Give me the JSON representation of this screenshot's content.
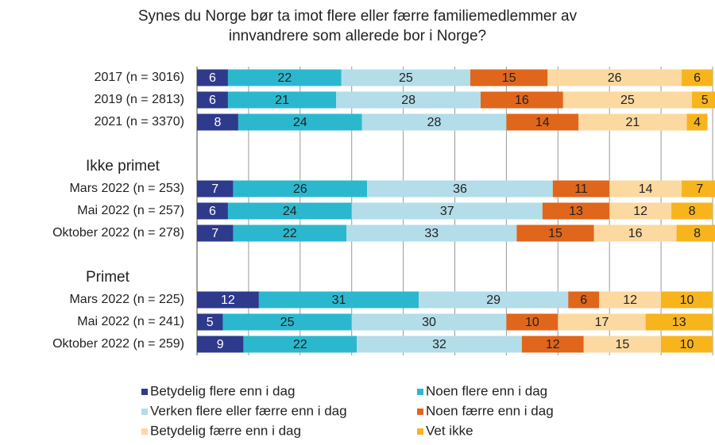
{
  "chart_data": {
    "type": "stacked_barh",
    "title": "Synes du Norge bør ta imot flere eller færre familiemedlemmer av innvandrere som allerede bor i Norge?",
    "categories": [
      "2017 (n = 3016)",
      "2019 (n = 2813)",
      "2021 (n = 3370)",
      null,
      "Ikke primet",
      "Mars 2022 (n = 253)",
      "Mai 2022 (n = 257)",
      "Oktober 2022 (n = 278)",
      null,
      "Primet",
      "Mars 2022 (n = 225)",
      "Mai 2022 (n = 241)",
      "Oktober 2022 (n = 259)"
    ],
    "series": [
      {
        "name": "Betydelig flere enn i dag",
        "color": "#2e3a8c",
        "values": [
          6,
          6,
          8,
          null,
          null,
          7,
          6,
          7,
          null,
          null,
          12,
          5,
          9
        ]
      },
      {
        "name": "Noen flere enn i dag",
        "color": "#2bb8cf",
        "values": [
          22,
          21,
          24,
          null,
          null,
          26,
          24,
          22,
          null,
          null,
          31,
          25,
          22
        ]
      },
      {
        "name": "Verken flere eller færre enn i dag",
        "color": "#b3dde8",
        "values": [
          25,
          28,
          28,
          null,
          null,
          36,
          37,
          33,
          null,
          null,
          29,
          30,
          32
        ]
      },
      {
        "name": "Noen færre enn i dag",
        "color": "#e0661b",
        "values": [
          15,
          16,
          14,
          null,
          null,
          11,
          13,
          15,
          null,
          null,
          6,
          10,
          12
        ]
      },
      {
        "name": "Betydelig færre enn i dag",
        "color": "#fbd9a0",
        "values": [
          26,
          25,
          21,
          null,
          null,
          14,
          12,
          16,
          null,
          null,
          12,
          17,
          15
        ]
      },
      {
        "name": "Vet ikke",
        "color": "#f7b41c",
        "values": [
          6,
          5,
          4,
          null,
          null,
          7,
          8,
          8,
          null,
          null,
          10,
          13,
          10
        ]
      }
    ],
    "xlim": [
      0,
      100
    ],
    "xticks": [
      0,
      10,
      20,
      30,
      40,
      50,
      60,
      70,
      80,
      90,
      100
    ],
    "grid": true
  }
}
